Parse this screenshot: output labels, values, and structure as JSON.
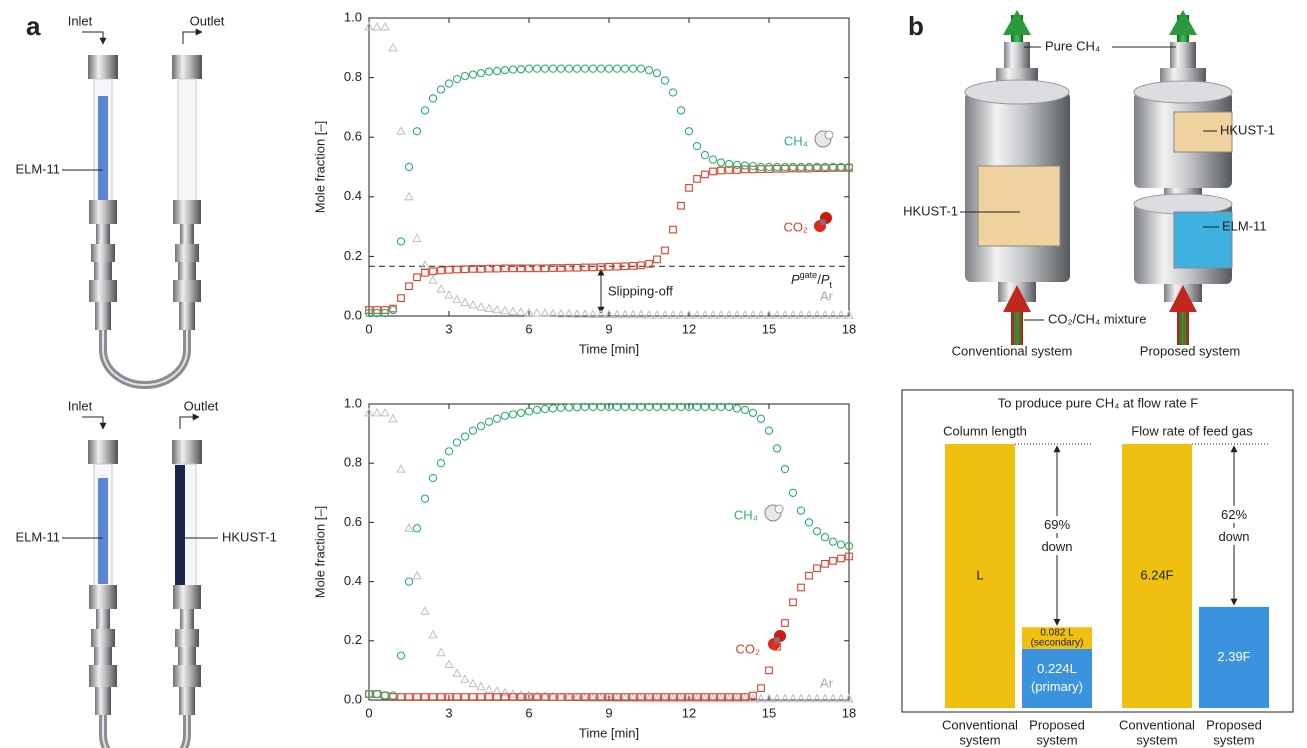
{
  "panel_labels": [
    "a",
    "b"
  ],
  "photos": [
    {
      "inlet": "Inlet",
      "outlet": "Outlet",
      "left_label": "ELM-11"
    },
    {
      "inlet": "Inlet",
      "outlet": "Outlet",
      "left_label": "ELM-11",
      "right_label": "HKUST-1"
    }
  ],
  "diagram": {
    "outlet_label": "Pure CH₄",
    "inlet_label": "CO₂/CH₄ mixture",
    "conventional": {
      "name": "Conventional system",
      "column": "HKUST-1"
    },
    "proposed": {
      "name": "Proposed system",
      "upper": "HKUST-1",
      "lower": "ELM-11"
    }
  },
  "chart_data": [
    {
      "type": "line",
      "xlabel": "Time [min]",
      "ylabel": "Mole fraction [–]",
      "x": [
        0,
        0.3,
        0.6,
        0.9,
        1.2,
        1.5,
        1.8,
        2.1,
        2.4,
        2.7,
        3,
        3.3,
        3.6,
        3.9,
        4.2,
        4.5,
        4.8,
        5.1,
        5.4,
        5.7,
        6,
        6.3,
        6.6,
        6.9,
        7.2,
        7.5,
        7.8,
        8.1,
        8.4,
        8.7,
        9,
        9.3,
        9.6,
        9.9,
        10.2,
        10.5,
        10.8,
        11.1,
        11.4,
        11.7,
        12,
        12.3,
        12.6,
        12.9,
        13.2,
        13.5,
        13.8,
        14.1,
        14.4,
        14.7,
        15,
        15.3,
        15.6,
        15.9,
        16.2,
        16.5,
        16.8,
        17.1,
        17.4,
        17.7,
        18
      ],
      "xlim": [
        0,
        18
      ],
      "xticks": [
        0,
        3,
        6,
        9,
        12,
        15,
        18
      ],
      "ylim": [
        0,
        1
      ],
      "yticks": [
        {
          "value": 0,
          "label": "0.0"
        },
        0.2,
        0.4,
        0.6,
        0.8,
        {
          "value": 1,
          "label": "1.0"
        }
      ],
      "series": [
        {
          "name": "Ar",
          "color": "#c4c4c4",
          "marker": "triangle",
          "values": [
            0.97,
            0.97,
            0.97,
            0.9,
            0.62,
            0.4,
            0.26,
            0.17,
            0.12,
            0.09,
            0.07,
            0.055,
            0.045,
            0.037,
            0.03,
            0.025,
            0.021,
            0.018,
            0.015,
            0.013,
            0.011,
            0.01,
            0.009,
            0.008,
            0.007,
            0.007,
            0.006,
            0.006,
            0.005,
            0.005,
            0.005,
            0.004,
            0.004,
            0.004,
            0.004,
            0.003,
            0.003,
            0.003,
            0.003,
            0.003,
            0.003,
            0.003,
            0.003,
            0.003,
            0.003,
            0.003,
            0.003,
            0.003,
            0.003,
            0.003,
            0.003,
            0.003,
            0.003,
            0.003,
            0.003,
            0.003,
            0.003,
            0.003,
            0.003,
            0.003,
            0.003
          ]
        },
        {
          "name": "CO₂",
          "color": "#d9412b",
          "marker": "square",
          "values": [
            0.02,
            0.02,
            0.02,
            0.025,
            0.06,
            0.1,
            0.13,
            0.145,
            0.15,
            0.153,
            0.155,
            0.156,
            0.157,
            0.158,
            0.158,
            0.159,
            0.159,
            0.16,
            0.16,
            0.16,
            0.16,
            0.16,
            0.16,
            0.161,
            0.161,
            0.162,
            0.162,
            0.163,
            0.163,
            0.164,
            0.165,
            0.166,
            0.167,
            0.168,
            0.17,
            0.175,
            0.19,
            0.22,
            0.29,
            0.37,
            0.43,
            0.46,
            0.475,
            0.485,
            0.488,
            0.49,
            0.49,
            0.492,
            0.492,
            0.493,
            0.493,
            0.494,
            0.494,
            0.495,
            0.495,
            0.495,
            0.496,
            0.496,
            0.497,
            0.497,
            0.497
          ]
        },
        {
          "name": "CH₄",
          "color": "#2fb36a",
          "marker": "circle",
          "values": [
            0.01,
            0.01,
            0.01,
            0.02,
            0.25,
            0.5,
            0.62,
            0.69,
            0.73,
            0.76,
            0.78,
            0.795,
            0.805,
            0.81,
            0.815,
            0.82,
            0.822,
            0.825,
            0.827,
            0.828,
            0.83,
            0.83,
            0.83,
            0.83,
            0.83,
            0.83,
            0.83,
            0.83,
            0.83,
            0.83,
            0.83,
            0.83,
            0.83,
            0.83,
            0.83,
            0.825,
            0.815,
            0.79,
            0.75,
            0.69,
            0.62,
            0.57,
            0.54,
            0.525,
            0.515,
            0.51,
            0.507,
            0.505,
            0.503,
            0.5,
            0.5,
            0.5,
            0.5,
            0.5,
            0.5,
            0.5,
            0.5,
            0.5,
            0.5,
            0.5,
            0.5
          ]
        }
      ],
      "hline": {
        "value": 0.167,
        "label": [
          "P",
          "gate",
          "/",
          "P",
          "t"
        ]
      },
      "annotations": [
        "Slipping-off"
      ]
    },
    {
      "type": "line",
      "xlabel": "Time [min]",
      "ylabel": "Mole fraction [–]",
      "x": [
        0,
        0.3,
        0.6,
        0.9,
        1.2,
        1.5,
        1.8,
        2.1,
        2.4,
        2.7,
        3,
        3.3,
        3.6,
        3.9,
        4.2,
        4.5,
        4.8,
        5.1,
        5.4,
        5.7,
        6,
        6.3,
        6.6,
        6.9,
        7.2,
        7.5,
        7.8,
        8.1,
        8.4,
        8.7,
        9,
        9.3,
        9.6,
        9.9,
        10.2,
        10.5,
        10.8,
        11.1,
        11.4,
        11.7,
        12,
        12.3,
        12.6,
        12.9,
        13.2,
        13.5,
        13.8,
        14.1,
        14.4,
        14.7,
        15,
        15.3,
        15.6,
        15.9,
        16.2,
        16.5,
        16.8,
        17.1,
        17.4,
        17.7,
        18
      ],
      "xlim": [
        0,
        18
      ],
      "xticks": [
        0,
        3,
        6,
        9,
        12,
        15,
        18
      ],
      "ylim": [
        0,
        1
      ],
      "yticks": [
        {
          "value": 0,
          "label": "0.0"
        },
        0.2,
        0.4,
        0.6,
        0.8,
        {
          "value": 1,
          "label": "1.0"
        }
      ],
      "series": [
        {
          "name": "Ar",
          "color": "#c4c4c4",
          "marker": "triangle",
          "values": [
            0.97,
            0.97,
            0.97,
            0.95,
            0.78,
            0.58,
            0.42,
            0.3,
            0.22,
            0.16,
            0.12,
            0.09,
            0.07,
            0.055,
            0.045,
            0.035,
            0.03,
            0.025,
            0.02,
            0.017,
            0.015,
            0.013,
            0.012,
            0.011,
            0.01,
            0.009,
            0.008,
            0.007,
            0.007,
            0.006,
            0.006,
            0.005,
            0.005,
            0.005,
            0.005,
            0.004,
            0.004,
            0.004,
            0.004,
            0.004,
            0.004,
            0.004,
            0.004,
            0.004,
            0.004,
            0.004,
            0.004,
            0.004,
            0.004,
            0.004,
            0.004,
            0.004,
            0.004,
            0.004,
            0.004,
            0.004,
            0.004,
            0.004,
            0.004,
            0.004,
            0.004
          ]
        },
        {
          "name": "CO₂",
          "color": "#d9412b",
          "marker": "square",
          "values": [
            0.02,
            0.02,
            0.015,
            0.01,
            0.01,
            0.01,
            0.01,
            0.01,
            0.01,
            0.01,
            0.01,
            0.01,
            0.01,
            0.01,
            0.01,
            0.01,
            0.01,
            0.01,
            0.01,
            0.01,
            0.01,
            0.01,
            0.01,
            0.01,
            0.01,
            0.01,
            0.01,
            0.01,
            0.01,
            0.01,
            0.01,
            0.01,
            0.01,
            0.01,
            0.01,
            0.01,
            0.01,
            0.01,
            0.01,
            0.01,
            0.01,
            0.01,
            0.01,
            0.01,
            0.01,
            0.01,
            0.01,
            0.01,
            0.015,
            0.04,
            0.1,
            0.18,
            0.26,
            0.33,
            0.38,
            0.42,
            0.445,
            0.46,
            0.47,
            0.478,
            0.485
          ]
        },
        {
          "name": "CH₄",
          "color": "#2fb36a",
          "marker": "circle",
          "values": [
            0.02,
            0.02,
            0.015,
            0.015,
            0.15,
            0.4,
            0.58,
            0.68,
            0.75,
            0.8,
            0.84,
            0.87,
            0.89,
            0.91,
            0.925,
            0.94,
            0.95,
            0.96,
            0.965,
            0.97,
            0.975,
            0.98,
            0.983,
            0.985,
            0.987,
            0.988,
            0.989,
            0.99,
            0.99,
            0.99,
            0.99,
            0.99,
            0.99,
            0.99,
            0.99,
            0.99,
            0.99,
            0.99,
            0.99,
            0.99,
            0.99,
            0.99,
            0.99,
            0.99,
            0.99,
            0.99,
            0.985,
            0.98,
            0.97,
            0.95,
            0.91,
            0.85,
            0.78,
            0.7,
            0.64,
            0.6,
            0.57,
            0.55,
            0.535,
            0.525,
            0.52
          ]
        }
      ]
    },
    {
      "type": "stacked-bar",
      "title": "To produce pure CH₄ at flow rate F",
      "groups": [
        {
          "name": "Column length",
          "reduction": [
            "69%",
            "down"
          ],
          "bars": [
            {
              "label": [
                "Conventional",
                "system"
              ],
              "segments": [
                {
                  "value": 1,
                  "value_label": "L",
                  "color": "#f0c010"
                }
              ]
            },
            {
              "label": [
                "Proposed",
                "system"
              ],
              "segments": [
                {
                  "value": 0.224,
                  "value_label": "0.224L",
                  "sub_label": "(primary)",
                  "color": "#3a93dc"
                },
                {
                  "value": 0.082,
                  "value_label": "0.082 L",
                  "sub_label": "(secondary)",
                  "color": "#f0c010"
                }
              ]
            }
          ]
        },
        {
          "name": "Flow rate of feed gas",
          "reduction": [
            "62%",
            "down"
          ],
          "bars": [
            {
              "label": [
                "Conventional",
                "system"
              ],
              "segments": [
                {
                  "value": 6.24,
                  "value_label": "6.24F",
                  "color": "#f0c010"
                }
              ]
            },
            {
              "label": [
                "Proposed",
                "system"
              ],
              "segments": [
                {
                  "value": 2.39,
                  "value_label": "2.39F",
                  "color": "#3a93dc"
                }
              ]
            }
          ]
        }
      ]
    }
  ]
}
